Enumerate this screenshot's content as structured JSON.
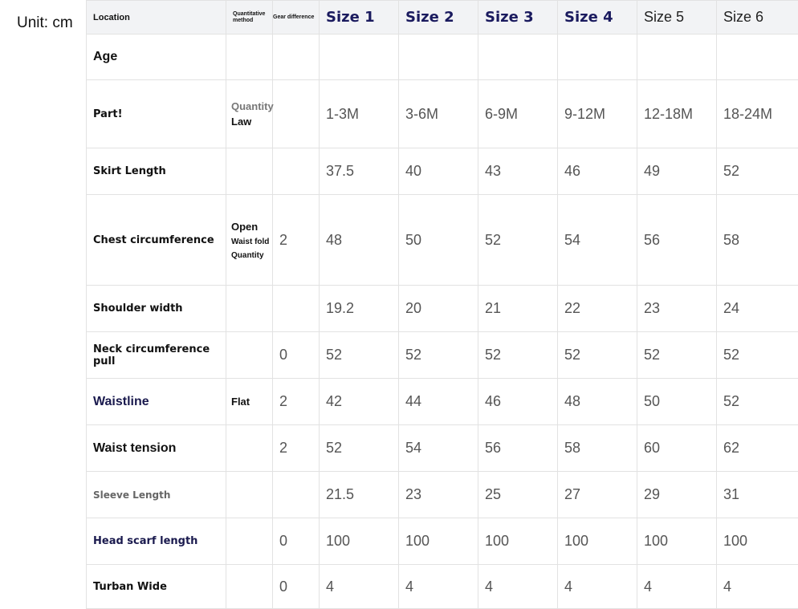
{
  "unit_label": "Unit: cm",
  "header": {
    "location": "Location",
    "method": "Quantitative method",
    "gear": "Gear difference",
    "sizes": [
      "Size 1",
      "Size 2",
      "Size 3",
      "Size 4",
      "Size 5",
      "Size 6"
    ]
  },
  "rows": [
    {
      "label": "Age",
      "method": [],
      "gear": "",
      "values": [
        "",
        "",
        "",
        "",
        "",
        ""
      ]
    },
    {
      "label": "Part!",
      "method": [
        "Quantity",
        "Law"
      ],
      "gear": "",
      "values": [
        "1-3M",
        "3-6M",
        "6-9M",
        "9-12M",
        "12-18M",
        "18-24M"
      ]
    },
    {
      "label": "Skirt Length",
      "method": [],
      "gear": "",
      "values": [
        "37.5",
        "40",
        "43",
        "46",
        "49",
        "52"
      ]
    },
    {
      "label": "Chest circumference",
      "method": [
        "Open",
        "Waist fold",
        "Quantity"
      ],
      "gear": "2",
      "values": [
        "48",
        "50",
        "52",
        "54",
        "56",
        "58"
      ]
    },
    {
      "label": "Shoulder width",
      "method": [],
      "gear": "",
      "values": [
        "19.2",
        "20",
        "21",
        "22",
        "23",
        "24"
      ]
    },
    {
      "label": "Neck circumference pull",
      "method": [],
      "gear": "0",
      "values": [
        "52",
        "52",
        "52",
        "52",
        "52",
        "52"
      ]
    },
    {
      "label": "Waistline",
      "method": [
        "Flat"
      ],
      "gear": "2",
      "values": [
        "42",
        "44",
        "46",
        "48",
        "50",
        "52"
      ]
    },
    {
      "label": "Waist tension",
      "method": [],
      "gear": "2",
      "values": [
        "52",
        "54",
        "56",
        "58",
        "60",
        "62"
      ]
    },
    {
      "label": "Sleeve Length",
      "method": [],
      "gear": "",
      "values": [
        "21.5",
        "23",
        "25",
        "27",
        "29",
        "31"
      ]
    },
    {
      "label": "Head scarf length",
      "method": [],
      "gear": "0",
      "values": [
        "100",
        "100",
        "100",
        "100",
        "100",
        "100"
      ]
    },
    {
      "label": "Turban Wide",
      "method": [],
      "gear": "0",
      "values": [
        "4",
        "4",
        "4",
        "4",
        "4",
        "4"
      ]
    }
  ]
}
